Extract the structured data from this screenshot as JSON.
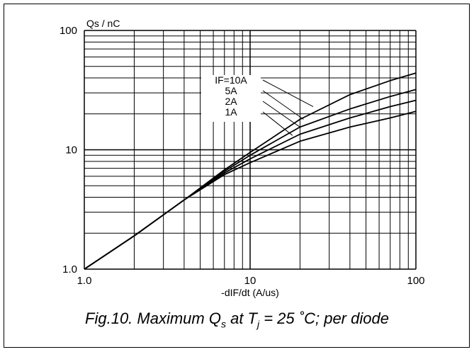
{
  "chart_data": {
    "type": "line",
    "xscale": "log",
    "yscale": "log",
    "xlim": [
      1,
      100
    ],
    "ylim": [
      1,
      100
    ],
    "xticks": [
      "1.0",
      "10",
      "100"
    ],
    "yticks": [
      "1.0",
      "10",
      "100"
    ],
    "ylabel": "Qs / nC",
    "xlabel": "-dIF/dt (A/us)",
    "grid": true,
    "series": [
      {
        "name": "IF=10A",
        "x": [
          1,
          2,
          4,
          7,
          10,
          20,
          40,
          70,
          100
        ],
        "y": [
          1.0,
          1.9,
          3.8,
          6.8,
          9.5,
          18,
          29,
          38,
          44
        ]
      },
      {
        "name": "5A",
        "x": [
          1,
          2,
          4,
          7,
          10,
          20,
          40,
          70,
          100
        ],
        "y": [
          1.0,
          1.9,
          3.8,
          6.6,
          9.0,
          15.5,
          22,
          28,
          32
        ]
      },
      {
        "name": "2A",
        "x": [
          1,
          2,
          4,
          7,
          10,
          20,
          40,
          70,
          100
        ],
        "y": [
          1.0,
          1.9,
          3.8,
          6.4,
          8.4,
          13.5,
          18.5,
          23,
          26
        ]
      },
      {
        "name": "1A",
        "x": [
          1,
          2,
          4,
          7,
          10,
          20,
          40,
          70,
          100
        ],
        "y": [
          1.0,
          1.9,
          3.8,
          6.2,
          7.8,
          11.8,
          15.5,
          18.5,
          21
        ]
      }
    ]
  },
  "caption": {
    "prefix": "Fig.10.  Maximum Q",
    "q_sub": "s",
    "mid": " at T",
    "t_sub": "j",
    "suffix": " = 25 ˚C; per diode"
  }
}
